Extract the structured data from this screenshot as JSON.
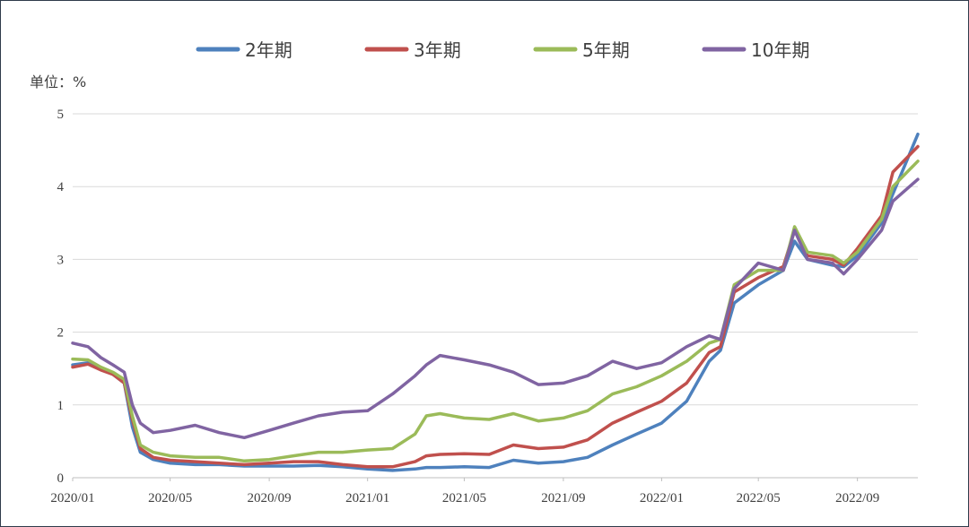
{
  "chart_data": {
    "type": "line",
    "ylabel": "单位：%",
    "ylim": [
      0,
      5
    ],
    "yticks": [
      "0",
      "1",
      "2",
      "3",
      "4",
      "5"
    ],
    "xticks": [
      "2020/01",
      "2020/05",
      "2020/09",
      "2021/01",
      "2021/05",
      "2021/09",
      "2022/01",
      "2022/05",
      "2022/09"
    ],
    "xlim": [
      "2020-01-01",
      "2022-11-15"
    ],
    "grid": "horizontal",
    "legend_position": "top",
    "x": [
      "2020-01-01",
      "2020-01-20",
      "2020-02-05",
      "2020-02-20",
      "2020-03-05",
      "2020-03-15",
      "2020-03-25",
      "2020-04-10",
      "2020-05-01",
      "2020-06-01",
      "2020-07-01",
      "2020-08-01",
      "2020-09-01",
      "2020-10-01",
      "2020-11-01",
      "2020-12-01",
      "2021-01-01",
      "2021-02-01",
      "2021-03-01",
      "2021-03-15",
      "2021-04-01",
      "2021-05-01",
      "2021-06-01",
      "2021-07-01",
      "2021-08-01",
      "2021-09-01",
      "2021-10-01",
      "2021-11-01",
      "2021-12-01",
      "2022-01-01",
      "2022-02-01",
      "2022-03-01",
      "2022-03-15",
      "2022-04-01",
      "2022-05-01",
      "2022-06-01",
      "2022-06-15",
      "2022-07-01",
      "2022-08-01",
      "2022-08-15",
      "2022-09-01",
      "2022-10-01",
      "2022-10-15",
      "2022-11-15"
    ],
    "series": [
      {
        "name": "2年期",
        "color": "#4e81bd",
        "values": [
          1.55,
          1.58,
          1.5,
          1.42,
          1.3,
          0.7,
          0.35,
          0.25,
          0.2,
          0.18,
          0.18,
          0.16,
          0.16,
          0.16,
          0.17,
          0.15,
          0.12,
          0.1,
          0.12,
          0.14,
          0.14,
          0.15,
          0.14,
          0.24,
          0.2,
          0.22,
          0.28,
          0.45,
          0.6,
          0.75,
          1.05,
          1.6,
          1.75,
          2.4,
          2.65,
          2.85,
          3.25,
          3.0,
          2.92,
          2.9,
          3.05,
          3.5,
          3.9,
          4.72
        ]
      },
      {
        "name": "3年期",
        "color": "#c0504d",
        "values": [
          1.52,
          1.56,
          1.48,
          1.42,
          1.3,
          0.8,
          0.4,
          0.28,
          0.24,
          0.22,
          0.2,
          0.18,
          0.2,
          0.22,
          0.22,
          0.18,
          0.15,
          0.15,
          0.22,
          0.3,
          0.32,
          0.33,
          0.32,
          0.45,
          0.4,
          0.42,
          0.52,
          0.75,
          0.9,
          1.05,
          1.3,
          1.72,
          1.8,
          2.55,
          2.75,
          2.9,
          3.4,
          3.05,
          3.0,
          2.92,
          3.15,
          3.6,
          4.2,
          4.55
        ]
      },
      {
        "name": "5年期",
        "color": "#9bbb59",
        "values": [
          1.63,
          1.62,
          1.52,
          1.45,
          1.35,
          0.85,
          0.45,
          0.35,
          0.3,
          0.28,
          0.28,
          0.23,
          0.25,
          0.3,
          0.35,
          0.35,
          0.38,
          0.4,
          0.6,
          0.85,
          0.88,
          0.82,
          0.8,
          0.88,
          0.78,
          0.82,
          0.92,
          1.15,
          1.25,
          1.4,
          1.6,
          1.85,
          1.9,
          2.65,
          2.85,
          2.85,
          3.45,
          3.1,
          3.05,
          2.95,
          3.1,
          3.55,
          4.0,
          4.35
        ]
      },
      {
        "name": "10年期",
        "color": "#8064a2",
        "values": [
          1.85,
          1.8,
          1.65,
          1.55,
          1.45,
          1.0,
          0.75,
          0.62,
          0.65,
          0.72,
          0.62,
          0.55,
          0.65,
          0.75,
          0.85,
          0.9,
          0.92,
          1.15,
          1.4,
          1.55,
          1.68,
          1.62,
          1.55,
          1.45,
          1.28,
          1.3,
          1.4,
          1.6,
          1.5,
          1.58,
          1.8,
          1.95,
          1.9,
          2.6,
          2.95,
          2.85,
          3.4,
          3.0,
          2.95,
          2.8,
          3.0,
          3.4,
          3.8,
          4.1
        ]
      }
    ]
  }
}
